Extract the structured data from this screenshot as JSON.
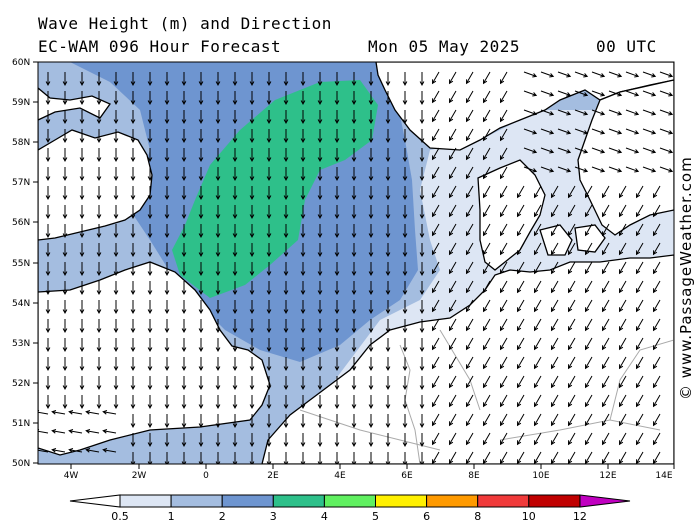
{
  "header": {
    "line1": "Wave Height (m) and Direction",
    "model": "EC-WAM 096 Hour Forecast",
    "date": "Mon 05 May 2025",
    "time": "00 UTC"
  },
  "credit": "© www.PassageWeather.com",
  "axes": {
    "lat_labels": [
      "60N",
      "59N",
      "58N",
      "57N",
      "56N",
      "55N",
      "54N",
      "53N",
      "52N",
      "51N",
      "50N"
    ],
    "lon_labels": [
      "4W",
      "2W",
      "0",
      "2E",
      "4E",
      "6E",
      "8E",
      "10E",
      "12E",
      "14E"
    ]
  },
  "colorbar": {
    "labels": [
      "0.5",
      "1",
      "2",
      "3",
      "4",
      "5",
      "6",
      "8",
      "10",
      "12"
    ],
    "colors": [
      "#dde6f4",
      "#a4bde0",
      "#6e95d0",
      "#2ec08a",
      "#60f060",
      "#fff000",
      "#ff9a00",
      "#f03a3a",
      "#c00000",
      "#c000c0"
    ]
  },
  "colors": {
    "land": "#ffffff",
    "sea_calm": "#dde6f4",
    "sea_1_2": "#a4bde0",
    "sea_2_3": "#6e95d0",
    "sea_3_4": "#2ec08a",
    "coast": "#000000",
    "border": "#aaaaaa"
  }
}
